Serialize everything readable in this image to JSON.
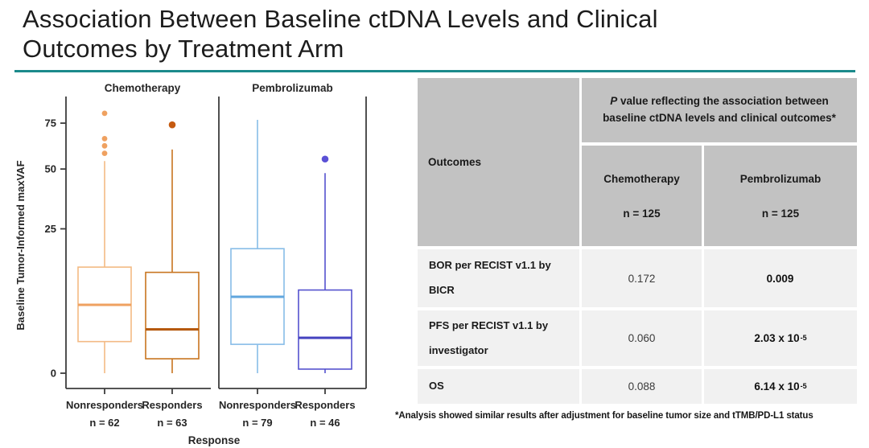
{
  "slide": {
    "title_line1": "Association Between Baseline ctDNA Levels and Clinical",
    "title_line2": "Outcomes by Treatment Arm",
    "accent_color": "#1b8a8b",
    "footnote": "*Analysis showed similar results after adjustment for baseline tumor size and tTMB/PD-L1 status"
  },
  "chart_data": {
    "type": "box",
    "ylabel": "Baseline Tumor-Informed maxVAF",
    "xlabel": "Response",
    "yscale": "sqrt",
    "yticks": [
      0,
      25,
      50,
      75
    ],
    "ymax": 92,
    "axis_color": "#3d3d3d",
    "text_color": "#262626",
    "panels": [
      {
        "title": "Chemotherapy",
        "series": [
          {
            "label": "Nonresponders",
            "n_label": "n = 62",
            "color": "#f3ba84",
            "median_color": "#efa160",
            "dot_color": "#efa160",
            "stats": {
              "whisker_low": 0,
              "q1": 1.2,
              "median": 5.6,
              "q3": 13.5,
              "whisker_high": 54
            },
            "outliers": [
              58,
              62,
              66,
              81
            ]
          },
          {
            "label": "Responders",
            "n_label": "n = 63",
            "color": "#c8751f",
            "median_color": "#b5590d",
            "dot_color": "#c55a10",
            "stats": {
              "whisker_low": 0,
              "q1": 0.25,
              "median": 2.3,
              "q3": 12.2,
              "whisker_high": 60
            },
            "outliers": [
              74
            ]
          }
        ]
      },
      {
        "title": "Pembrolizumab",
        "series": [
          {
            "label": "Nonresponders",
            "n_label": "n = 79",
            "color": "#87bce8",
            "median_color": "#61a6de",
            "dot_color": "#61a6de",
            "stats": {
              "whisker_low": 0,
              "q1": 1.0,
              "median": 7.0,
              "q3": 18.6,
              "whisker_high": 77
            },
            "outliers": []
          },
          {
            "label": "Responders",
            "n_label": "n = 46",
            "color": "#5552ce",
            "median_color": "#4442bf",
            "dot_color": "#5b51d6",
            "stats": {
              "whisker_low": 0,
              "q1": 0.02,
              "median": 1.5,
              "q3": 8.3,
              "whisker_high": 48
            },
            "outliers": [
              55
            ]
          }
        ]
      }
    ]
  },
  "table": {
    "header_bg": "#c2c2c2",
    "body_bg": "#f1f1f1",
    "outcomes_header": "Outcomes",
    "p_header_italic": "P",
    "p_header_rest": " value reflecting the association between baseline ctDNA levels and clinical outcomes*",
    "columns": [
      {
        "drug": "Chemotherapy",
        "n": "n = 125"
      },
      {
        "drug": "Pembrolizumab",
        "n": "n = 125"
      }
    ],
    "rows": [
      {
        "label": "BOR per RECIST v1.1 by BICR",
        "chemo": "0.172",
        "pembro": "0.009",
        "pembro_exp": ""
      },
      {
        "label": "PFS per RECIST v1.1 by investigator",
        "chemo": "0.060",
        "pembro": "2.03 x 10",
        "pembro_exp": "-5"
      },
      {
        "label": "OS",
        "chemo": "0.088",
        "pembro": "6.14 x 10",
        "pembro_exp": "-5"
      }
    ]
  }
}
